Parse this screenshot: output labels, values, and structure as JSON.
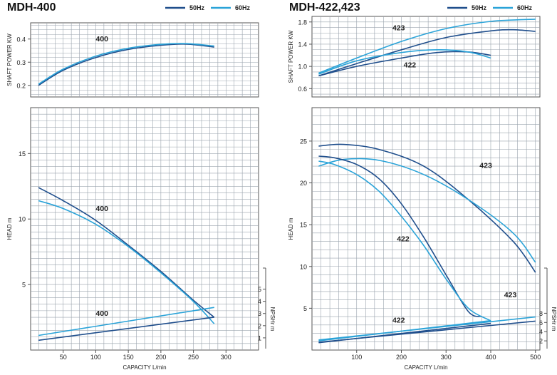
{
  "colors": {
    "fifty_hz": "#1f4e8c",
    "sixty_hz": "#2aa3d8",
    "grid": "#9aa3ad",
    "frame": "#555555",
    "text": "#222222"
  },
  "chart_data": [
    {
      "id": "mdh400",
      "title": "MDH-400",
      "legend": [
        {
          "label": "50Hz",
          "color": "#1f4e8c"
        },
        {
          "label": "60Hz",
          "color": "#2aa3d8"
        }
      ],
      "x": {
        "label": "CAPACITY  L/min",
        "min": 0,
        "max": 350,
        "ticks": [
          50,
          100,
          150,
          200,
          250,
          300
        ],
        "tick_labels": [
          "50",
          "100",
          "150",
          "200",
          "250",
          "300"
        ],
        "grid_step": 12.5
      },
      "top_panel": {
        "type": "line",
        "ylabel": "SHAFT POWER  KW",
        "ylim": [
          0.15,
          0.47
        ],
        "yticks": [
          0.2,
          0.3,
          0.4
        ],
        "ytick_labels": [
          "0.2",
          "0.3",
          "0.4"
        ],
        "grid_step": 0.02,
        "series": [
          {
            "freq": "50Hz",
            "points": [
              [
                12,
                0.2
              ],
              [
                50,
                0.265
              ],
              [
                100,
                0.32
              ],
              [
                150,
                0.355
              ],
              [
                200,
                0.373
              ],
              [
                240,
                0.378
              ],
              [
                282,
                0.365
              ]
            ]
          },
          {
            "freq": "60Hz",
            "points": [
              [
                12,
                0.205
              ],
              [
                50,
                0.27
              ],
              [
                100,
                0.326
              ],
              [
                150,
                0.36
              ],
              [
                200,
                0.377
              ],
              [
                240,
                0.38
              ],
              [
                282,
                0.37
              ]
            ]
          }
        ],
        "annotations": [
          {
            "text": "400",
            "x": 100,
            "y": 0.39
          }
        ]
      },
      "bottom_panel": {
        "type": "line",
        "ylabel": "HEAD  m",
        "ylim": [
          0,
          18.5
        ],
        "yticks": [
          5,
          10,
          15
        ],
        "ytick_labels": [
          "5",
          "10",
          "15"
        ],
        "grid_step": 0.5,
        "series": [
          {
            "freq": "50Hz",
            "kind": "head",
            "points": [
              [
                12,
                12.4
              ],
              [
                50,
                11.4
              ],
              [
                100,
                9.9
              ],
              [
                150,
                8.0
              ],
              [
                200,
                6.0
              ],
              [
                250,
                3.8
              ],
              [
                282,
                2.5
              ]
            ]
          },
          {
            "freq": "60Hz",
            "kind": "head",
            "points": [
              [
                12,
                11.4
              ],
              [
                50,
                10.8
              ],
              [
                100,
                9.6
              ],
              [
                150,
                7.9
              ],
              [
                200,
                5.9
              ],
              [
                250,
                3.7
              ],
              [
                282,
                2.0
              ]
            ]
          },
          {
            "freq": "50Hz",
            "kind": "npsh",
            "points": [
              [
                12,
                0.8
              ],
              [
                282,
                2.7
              ]
            ]
          },
          {
            "freq": "60Hz",
            "kind": "npsh",
            "points": [
              [
                12,
                1.2
              ],
              [
                282,
                3.5
              ]
            ]
          }
        ],
        "annotations": [
          {
            "text": "400",
            "x": 100,
            "y": 10.6
          },
          {
            "text": "400",
            "x": 100,
            "y": 2.6
          }
        ],
        "y2": {
          "label": "NPSHr  m",
          "ticks": [
            1,
            2,
            3,
            4,
            5
          ],
          "tick_labels": [
            "1",
            "2",
            "3",
            "4",
            "5"
          ],
          "head_per_unit": 0.93
        }
      }
    },
    {
      "id": "mdh422423",
      "title": "MDH-422,423",
      "legend": [
        {
          "label": "50Hz",
          "color": "#1f4e8c"
        },
        {
          "label": "60Hz",
          "color": "#2aa3d8"
        }
      ],
      "x": {
        "label": "CAPACITY  L/min",
        "min": 0,
        "max": 510,
        "ticks": [
          100,
          200,
          300,
          400,
          500
        ],
        "tick_labels": [
          "100",
          "200",
          "300",
          "400",
          "500"
        ],
        "grid_step": 20
      },
      "top_panel": {
        "type": "line",
        "ylabel": "SHAFT POWER  KW",
        "ylim": [
          0.45,
          1.9
        ],
        "yticks": [
          0.6,
          1.0,
          1.4,
          1.8
        ],
        "ytick_labels": [
          "0.6",
          "1.0",
          "1.4",
          "1.8"
        ],
        "grid_step": 0.1,
        "series": [
          {
            "freq": "50Hz",
            "model": "423",
            "points": [
              [
                15,
                0.83
              ],
              [
                100,
                1.05
              ],
              [
                200,
                1.3
              ],
              [
                300,
                1.52
              ],
              [
                400,
                1.64
              ],
              [
                450,
                1.66
              ],
              [
                500,
                1.63
              ]
            ]
          },
          {
            "freq": "60Hz",
            "model": "423",
            "points": [
              [
                15,
                0.88
              ],
              [
                100,
                1.15
              ],
              [
                200,
                1.45
              ],
              [
                300,
                1.68
              ],
              [
                400,
                1.81
              ],
              [
                500,
                1.85
              ]
            ]
          },
          {
            "freq": "50Hz",
            "model": "422",
            "points": [
              [
                15,
                0.83
              ],
              [
                100,
                1.0
              ],
              [
                200,
                1.15
              ],
              [
                280,
                1.25
              ],
              [
                350,
                1.26
              ],
              [
                400,
                1.2
              ]
            ]
          },
          {
            "freq": "60Hz",
            "model": "422",
            "points": [
              [
                15,
                0.86
              ],
              [
                100,
                1.1
              ],
              [
                200,
                1.25
              ],
              [
                280,
                1.3
              ],
              [
                350,
                1.26
              ],
              [
                400,
                1.15
              ]
            ]
          }
        ],
        "annotations": [
          {
            "text": "423",
            "x": 180,
            "y": 1.65
          },
          {
            "text": "422",
            "x": 205,
            "y": 0.98
          }
        ]
      },
      "bottom_panel": {
        "type": "line",
        "ylabel": "HEAD  m",
        "ylim": [
          0,
          29
        ],
        "yticks": [
          5,
          10,
          15,
          20,
          25
        ],
        "ytick_labels": [
          "5",
          "10",
          "15",
          "20",
          "25"
        ],
        "grid_step": 1,
        "series": [
          {
            "freq": "50Hz",
            "model": "423",
            "kind": "head",
            "points": [
              [
                15,
                24.4
              ],
              [
                70,
                24.6
              ],
              [
                150,
                24.0
              ],
              [
                250,
                22.0
              ],
              [
                350,
                18.0
              ],
              [
                450,
                13.0
              ],
              [
                500,
                9.3
              ]
            ]
          },
          {
            "freq": "60Hz",
            "model": "423",
            "kind": "head",
            "points": [
              [
                15,
                22.0
              ],
              [
                70,
                22.8
              ],
              [
                150,
                22.7
              ],
              [
                250,
                21.0
              ],
              [
                350,
                18.0
              ],
              [
                450,
                14.0
              ],
              [
                500,
                10.5
              ]
            ]
          },
          {
            "freq": "50Hz",
            "model": "422",
            "kind": "head",
            "points": [
              [
                15,
                23.2
              ],
              [
                50,
                23.0
              ],
              [
                100,
                22.2
              ],
              [
                150,
                20.5
              ],
              [
                200,
                17.5
              ],
              [
                250,
                13.5
              ],
              [
                300,
                9.0
              ],
              [
                350,
                4.6
              ],
              [
                380,
                4.0
              ]
            ]
          },
          {
            "freq": "60Hz",
            "model": "422",
            "kind": "head",
            "points": [
              [
                15,
                22.6
              ],
              [
                50,
                22.2
              ],
              [
                100,
                21.0
              ],
              [
                150,
                19.0
              ],
              [
                200,
                16.0
              ],
              [
                250,
                12.5
              ],
              [
                300,
                8.5
              ],
              [
                350,
                5.0
              ],
              [
                400,
                3.5
              ]
            ]
          },
          {
            "freq": "50Hz",
            "model": "423",
            "kind": "npsh",
            "points": [
              [
                15,
                1.7
              ],
              [
                500,
                6.3
              ]
            ]
          },
          {
            "freq": "60Hz",
            "model": "423",
            "kind": "npsh",
            "points": [
              [
                15,
                2.2
              ],
              [
                500,
                7.2
              ]
            ]
          },
          {
            "freq": "50Hz",
            "model": "422",
            "kind": "npsh",
            "points": [
              [
                15,
                1.6
              ],
              [
                400,
                5.8
              ]
            ]
          },
          {
            "freq": "60Hz",
            "model": "422",
            "kind": "npsh",
            "points": [
              [
                15,
                2.0
              ],
              [
                400,
                6.4
              ]
            ]
          }
        ],
        "annotations": [
          {
            "text": "423",
            "x": 375,
            "y": 21.8
          },
          {
            "text": "422",
            "x": 190,
            "y": 13.0
          },
          {
            "text": "422",
            "x": 180,
            "y": 3.3
          },
          {
            "text": "423",
            "x": 430,
            "y": 6.3
          }
        ],
        "y2": {
          "label": "NPSHr  m",
          "ticks": [
            2,
            4,
            6,
            8
          ],
          "tick_labels": [
            "2",
            "4",
            "6",
            "8"
          ],
          "head_per_unit": 0.55
        }
      }
    }
  ]
}
